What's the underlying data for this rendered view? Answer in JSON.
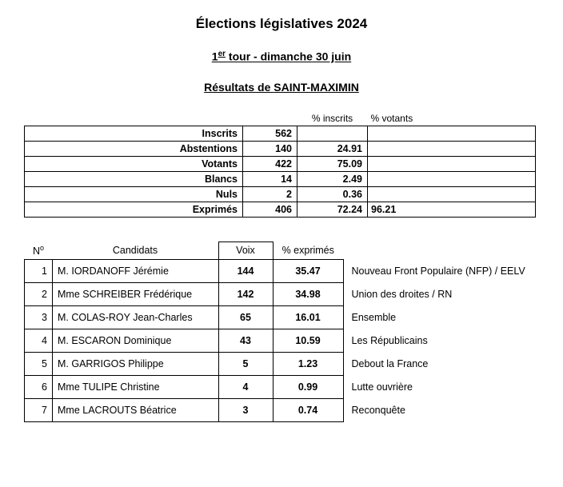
{
  "header": {
    "title": "Élections législatives 2024",
    "round_prefix": "1",
    "round_sup": "er",
    "round_rest": " tour - dimanche 30 juin",
    "results_prefix": "Résultats de ",
    "commune": "SAINT-MAXIMIN"
  },
  "stats_headers": {
    "pct_inscrits": "% inscrits",
    "pct_votants": "% votants"
  },
  "stats": [
    {
      "label": "Inscrits",
      "value": "562",
      "pct_inscrits": "",
      "pct_votants": ""
    },
    {
      "label": "Abstentions",
      "value": "140",
      "pct_inscrits": "24.91",
      "pct_votants": ""
    },
    {
      "label": "Votants",
      "value": "422",
      "pct_inscrits": "75.09",
      "pct_votants": ""
    },
    {
      "label": "Blancs",
      "value": "14",
      "pct_inscrits": "2.49",
      "pct_votants": ""
    },
    {
      "label": "Nuls",
      "value": "2",
      "pct_inscrits": "0.36",
      "pct_votants": ""
    },
    {
      "label": "Exprimés",
      "value": "406",
      "pct_inscrits": "72.24",
      "pct_votants": "96.21"
    }
  ],
  "cand_headers": {
    "num_prefix": "N",
    "num_sup": "o",
    "candidats": "Candidats",
    "voix": "Voix",
    "pct_exprimes": "% exprimés"
  },
  "candidates": [
    {
      "rank": "1",
      "name": "M. IORDANOFF Jérémie",
      "votes": "144",
      "pct": "35.47",
      "party": "Nouveau Front Populaire (NFP) / EELV"
    },
    {
      "rank": "2",
      "name": "Mme SCHREIBER Frédérique",
      "votes": "142",
      "pct": "34.98",
      "party": "Union des droites / RN"
    },
    {
      "rank": "3",
      "name": "M. COLAS-ROY Jean-Charles",
      "votes": "65",
      "pct": "16.01",
      "party": "Ensemble"
    },
    {
      "rank": "4",
      "name": "M. ESCARON Dominique",
      "votes": "43",
      "pct": "10.59",
      "party": "Les Républicains"
    },
    {
      "rank": "5",
      "name": "M. GARRIGOS Philippe",
      "votes": "5",
      "pct": "1.23",
      "party": "Debout la France"
    },
    {
      "rank": "6",
      "name": "Mme TULIPE Christine",
      "votes": "4",
      "pct": "0.99",
      "party": "Lutte ouvrière"
    },
    {
      "rank": "7",
      "name": "Mme LACROUTS Béatrice",
      "votes": "3",
      "pct": "0.74",
      "party": "Reconquête"
    }
  ]
}
